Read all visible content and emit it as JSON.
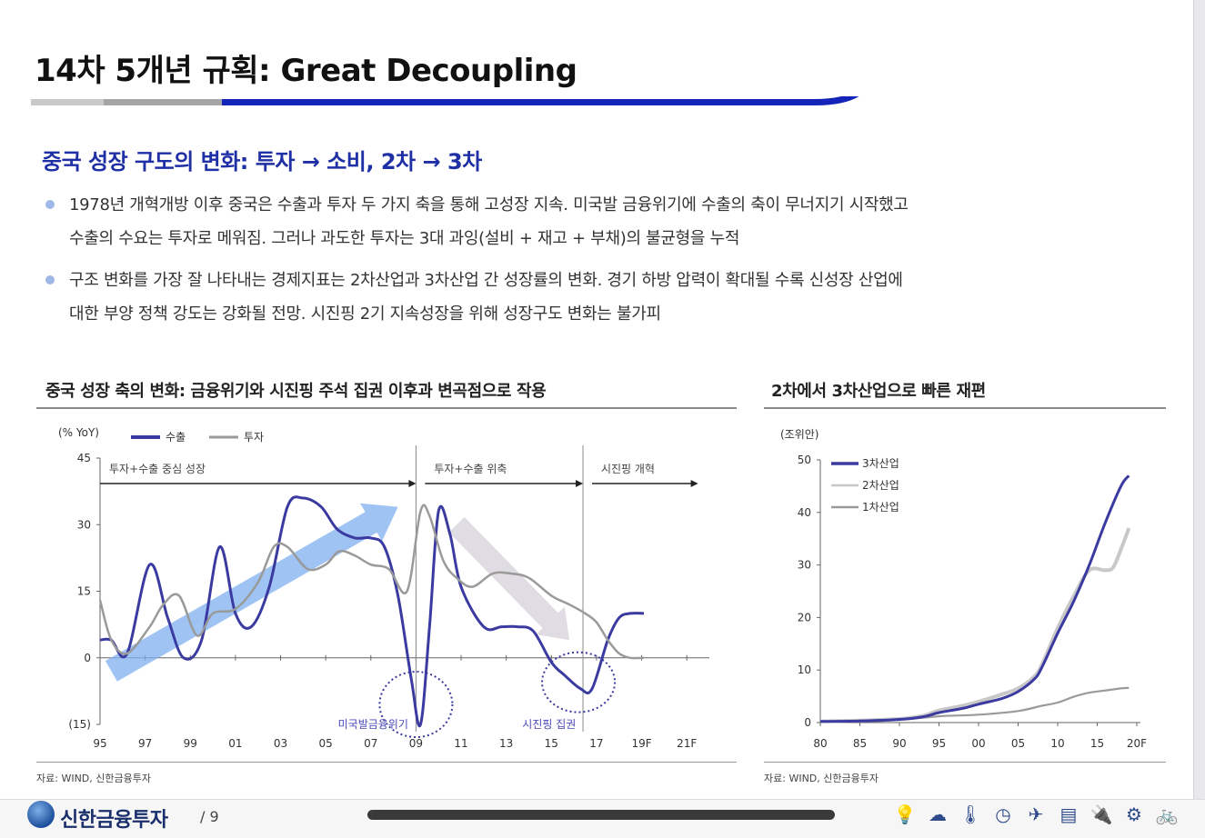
{
  "slide": {
    "title": "14차 5개년 규획: Great Decoupling",
    "subtitle": "중국 성장 구도의 변화: 투자 → 소비, 2차 → 3차",
    "bullets": [
      "1978년 개혁개방 이후 중국은 수출과 투자 두 가지 축을 통해 고성장 지속. 미국발 금융위기에 수출의 축이 무너지기 시작했고\n수출의 수요는 투자로 메워짐. 그러나 과도한 투자는 3대 과잉(설비 + 재고 + 부채)의 불균형을 누적",
      "구조 변화를 가장 잘 나타내는 경제지표는 2차산업과 3차산업 간 성장률의 변화. 경기 하방 압력이 확대될 수록 신성장 산업에\n대한 부양 정책 강도는 강화될 전망. 시진핑 2기 지속성장을 위해 성장구도 변화는 불가피"
    ],
    "colors": {
      "accent_blue": "#1f2fa5",
      "series_dark": "#3a3aa0",
      "series_gray": "#9a9a9a",
      "series_light": "#c8c8c8",
      "arrow_blue": "#7fb0f0"
    }
  },
  "charts": {
    "left": {
      "title": "중국 성장 축의 변화: 금융위기와 시진핑 주석 집권 이후과 변곡점으로 작용",
      "source": "자료: WIND, 신한금융투자"
    },
    "right": {
      "title": "2차에서 3차산업으로 빠른 재편",
      "source": "자료: WIND, 신한금융투자"
    }
  },
  "chart_data": [
    {
      "type": "line",
      "unit": "(% YoY)",
      "ylim": [
        -15,
        45
      ],
      "yticks": [
        45,
        30,
        15,
        0,
        -15
      ],
      "ytick_labels": [
        "45",
        "30",
        "15",
        "0",
        "(15)"
      ],
      "xlim": [
        1995,
        2022
      ],
      "xticks": [
        1995,
        1997,
        1999,
        2001,
        2003,
        2005,
        2007,
        2009,
        2011,
        2013,
        2015,
        2017,
        2019,
        2021
      ],
      "xtick_labels": [
        "95",
        "97",
        "99",
        "01",
        "03",
        "05",
        "07",
        "09",
        "11",
        "13",
        "15",
        "17",
        "19F",
        "21F"
      ],
      "legend": [
        "수출",
        "투자"
      ],
      "series": [
        {
          "name": "수출",
          "color": "#3a3aa0",
          "x": [
            1995,
            1995.5,
            1996.2,
            1997.2,
            1998,
            1998.7,
            1999.5,
            2000.3,
            2001,
            2001.7,
            2002.5,
            2003.3,
            2004,
            2004.8,
            2005.5,
            2006.3,
            2007,
            2007.6,
            2008.2,
            2008.8,
            2009.2,
            2009.6,
            2010,
            2010.5,
            2011,
            2012,
            2012.8,
            2013.5,
            2014.2,
            2015,
            2015.6,
            2016.3,
            2016.8,
            2017.5,
            2018,
            2018.5,
            2019.1
          ],
          "y": [
            4,
            4,
            1,
            21,
            9,
            0,
            4,
            25,
            10,
            7,
            16,
            34,
            36,
            34,
            29,
            27,
            27,
            25,
            14,
            -5,
            -15,
            7,
            33,
            28,
            16,
            7,
            7,
            7,
            6,
            -1,
            -4,
            -7,
            -7,
            4,
            9,
            10,
            10
          ]
        },
        {
          "name": "투자",
          "color": "#9a9a9a",
          "x": [
            1995,
            1995.5,
            1996.2,
            1997.2,
            1997.8,
            1998.5,
            1999.3,
            2000,
            2001,
            2002,
            2002.7,
            2003.3,
            2004.2,
            2005,
            2005.6,
            2006.3,
            2007,
            2007.8,
            2008.6,
            2009.2,
            2009.6,
            2010.2,
            2010.8,
            2011.5,
            2012.4,
            2013.2,
            2014,
            2015,
            2015.8,
            2016.5,
            2017,
            2017.5,
            2018,
            2018.5,
            2019.1
          ],
          "y": [
            13,
            4,
            1,
            7,
            12,
            14,
            5,
            10,
            11,
            17,
            25,
            25,
            20,
            21,
            24,
            23,
            21,
            20,
            15,
            33,
            32,
            22,
            18,
            16,
            19,
            19,
            18,
            14,
            12,
            10,
            8,
            4,
            1,
            0,
            0
          ]
        }
      ],
      "annotations": {
        "phases": [
          "투자+수출 중심 성장",
          "투자+수출 위축",
          "시진핑 개혁"
        ],
        "circle_labels": [
          "미국발금융위기",
          "시진핑 집권"
        ]
      }
    },
    {
      "type": "line",
      "unit": "(조위안)",
      "ylim": [
        0,
        50
      ],
      "yticks": [
        50,
        40,
        30,
        20,
        10,
        0
      ],
      "xlim": [
        1980,
        2020
      ],
      "xticks": [
        1980,
        1985,
        1990,
        1995,
        2000,
        2005,
        2010,
        2015,
        2020
      ],
      "xtick_labels": [
        "80",
        "85",
        "90",
        "95",
        "00",
        "05",
        "10",
        "15",
        "20F"
      ],
      "legend": [
        "3차산업",
        "2차산업",
        "1차산업"
      ],
      "series": [
        {
          "name": "3차산업",
          "color": "#3a3aa0",
          "x": [
            1980,
            1985,
            1990,
            1993,
            1995,
            1998,
            2000,
            2003,
            2005,
            2007,
            2008,
            2010,
            2012,
            2014,
            2016,
            2018,
            2019
          ],
          "y": [
            0.2,
            0.3,
            0.6,
            1.1,
            1.9,
            2.7,
            3.5,
            4.6,
            5.9,
            8.2,
            10.5,
            17,
            23,
            30,
            38,
            45,
            47
          ]
        },
        {
          "name": "2차산업",
          "color": "#c8c8c8",
          "x": [
            1980,
            1985,
            1990,
            1993,
            1995,
            1998,
            2000,
            2003,
            2005,
            2007,
            2008,
            2010,
            2012,
            2014,
            2016,
            2017,
            2018,
            2019
          ],
          "y": [
            0.2,
            0.4,
            0.7,
            1.3,
            2.3,
            3.2,
            4.0,
            5.4,
            6.5,
            8.7,
            11,
            18,
            24,
            29,
            29,
            29.5,
            33,
            37
          ]
        },
        {
          "name": "1차산업",
          "color": "#9a9a9a",
          "x": [
            1980,
            1985,
            1990,
            1995,
            2000,
            2005,
            2008,
            2010,
            2012,
            2014,
            2016,
            2018,
            2019
          ],
          "y": [
            0.1,
            0.2,
            0.5,
            1.2,
            1.5,
            2.2,
            3.2,
            3.8,
            4.9,
            5.7,
            6.1,
            6.5,
            6.6
          ]
        }
      ]
    }
  ],
  "footer": {
    "brand": "신한금융투자",
    "page": "/  9",
    "icons": [
      "lightbulb-icon",
      "cloud-icon",
      "thermometer-icon",
      "clock-icon",
      "plane-icon",
      "document-icon",
      "plug-icon",
      "gear-icon",
      "bicycle-icon"
    ],
    "icon_glyphs": [
      "💡",
      "☁",
      "🌡",
      "◷",
      "✈",
      "▤",
      "🔌",
      "⚙",
      "🚲"
    ]
  }
}
